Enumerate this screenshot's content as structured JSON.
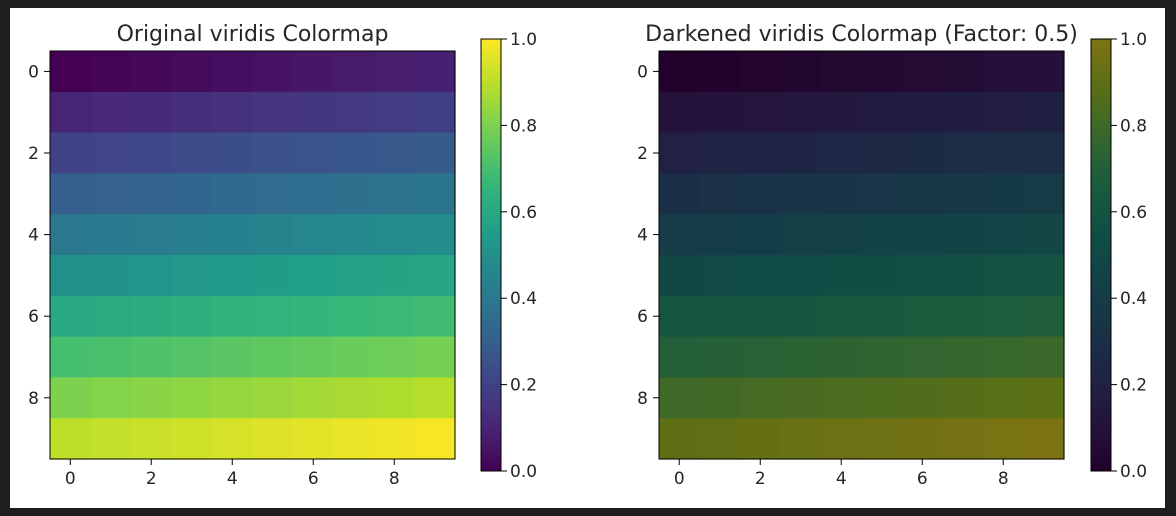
{
  "chart_data": [
    {
      "type": "heatmap",
      "title": "Original viridis Colormap",
      "colormap": "viridis",
      "darken_factor": 1.0,
      "rows": 10,
      "cols": 10,
      "values": [
        [
          0.0,
          0.01,
          0.02,
          0.03,
          0.04,
          0.05,
          0.06,
          0.07,
          0.08,
          0.09
        ],
        [
          0.1,
          0.11,
          0.12,
          0.13,
          0.14,
          0.15,
          0.16,
          0.17,
          0.18,
          0.19
        ],
        [
          0.2,
          0.21,
          0.22,
          0.23,
          0.24,
          0.25,
          0.26,
          0.27,
          0.28,
          0.29
        ],
        [
          0.3,
          0.31,
          0.32,
          0.33,
          0.34,
          0.35,
          0.36,
          0.37,
          0.38,
          0.39
        ],
        [
          0.4,
          0.41,
          0.42,
          0.43,
          0.44,
          0.45,
          0.46,
          0.47,
          0.48,
          0.49
        ],
        [
          0.5,
          0.51,
          0.52,
          0.53,
          0.54,
          0.55,
          0.56,
          0.57,
          0.58,
          0.59
        ],
        [
          0.6,
          0.61,
          0.62,
          0.63,
          0.64,
          0.65,
          0.66,
          0.67,
          0.68,
          0.69
        ],
        [
          0.7,
          0.71,
          0.72,
          0.73,
          0.74,
          0.75,
          0.76,
          0.77,
          0.78,
          0.79
        ],
        [
          0.8,
          0.81,
          0.82,
          0.83,
          0.84,
          0.85,
          0.86,
          0.87,
          0.88,
          0.89
        ],
        [
          0.9,
          0.91,
          0.92,
          0.93,
          0.94,
          0.95,
          0.96,
          0.97,
          0.98,
          0.99
        ]
      ],
      "xticks": [
        "0",
        "2",
        "4",
        "6",
        "8"
      ],
      "yticks": [
        "0",
        "2",
        "4",
        "6",
        "8"
      ],
      "colorbar": {
        "ticks": [
          "0.0",
          "0.2",
          "0.4",
          "0.6",
          "0.8",
          "1.0"
        ],
        "range": [
          0,
          1
        ]
      },
      "xlabel": "",
      "ylabel": ""
    },
    {
      "type": "heatmap",
      "title": "Darkened viridis Colormap (Factor: 0.5)",
      "colormap": "viridis",
      "darken_factor": 0.5,
      "rows": 10,
      "cols": 10,
      "values": [
        [
          0.0,
          0.01,
          0.02,
          0.03,
          0.04,
          0.05,
          0.06,
          0.07,
          0.08,
          0.09
        ],
        [
          0.1,
          0.11,
          0.12,
          0.13,
          0.14,
          0.15,
          0.16,
          0.17,
          0.18,
          0.19
        ],
        [
          0.2,
          0.21,
          0.22,
          0.23,
          0.24,
          0.25,
          0.26,
          0.27,
          0.28,
          0.29
        ],
        [
          0.3,
          0.31,
          0.32,
          0.33,
          0.34,
          0.35,
          0.36,
          0.37,
          0.38,
          0.39
        ],
        [
          0.4,
          0.41,
          0.42,
          0.43,
          0.44,
          0.45,
          0.46,
          0.47,
          0.48,
          0.49
        ],
        [
          0.5,
          0.51,
          0.52,
          0.53,
          0.54,
          0.55,
          0.56,
          0.57,
          0.58,
          0.59
        ],
        [
          0.6,
          0.61,
          0.62,
          0.63,
          0.64,
          0.65,
          0.66,
          0.67,
          0.68,
          0.69
        ],
        [
          0.7,
          0.71,
          0.72,
          0.73,
          0.74,
          0.75,
          0.76,
          0.77,
          0.78,
          0.79
        ],
        [
          0.8,
          0.81,
          0.82,
          0.83,
          0.84,
          0.85,
          0.86,
          0.87,
          0.88,
          0.89
        ],
        [
          0.9,
          0.91,
          0.92,
          0.93,
          0.94,
          0.95,
          0.96,
          0.97,
          0.98,
          0.99
        ]
      ],
      "xticks": [
        "0",
        "2",
        "4",
        "6",
        "8"
      ],
      "yticks": [
        "0",
        "2",
        "4",
        "6",
        "8"
      ],
      "colorbar": {
        "ticks": [
          "0.0",
          "0.2",
          "0.4",
          "0.6",
          "0.8",
          "1.0"
        ],
        "range": [
          0,
          1
        ]
      },
      "xlabel": "",
      "ylabel": ""
    }
  ],
  "colors": {
    "viridis_stops": [
      "#440154",
      "#482878",
      "#3e4989",
      "#31688e",
      "#26828e",
      "#1f9e89",
      "#35b779",
      "#6ece58",
      "#b5de2b",
      "#fde725"
    ]
  }
}
